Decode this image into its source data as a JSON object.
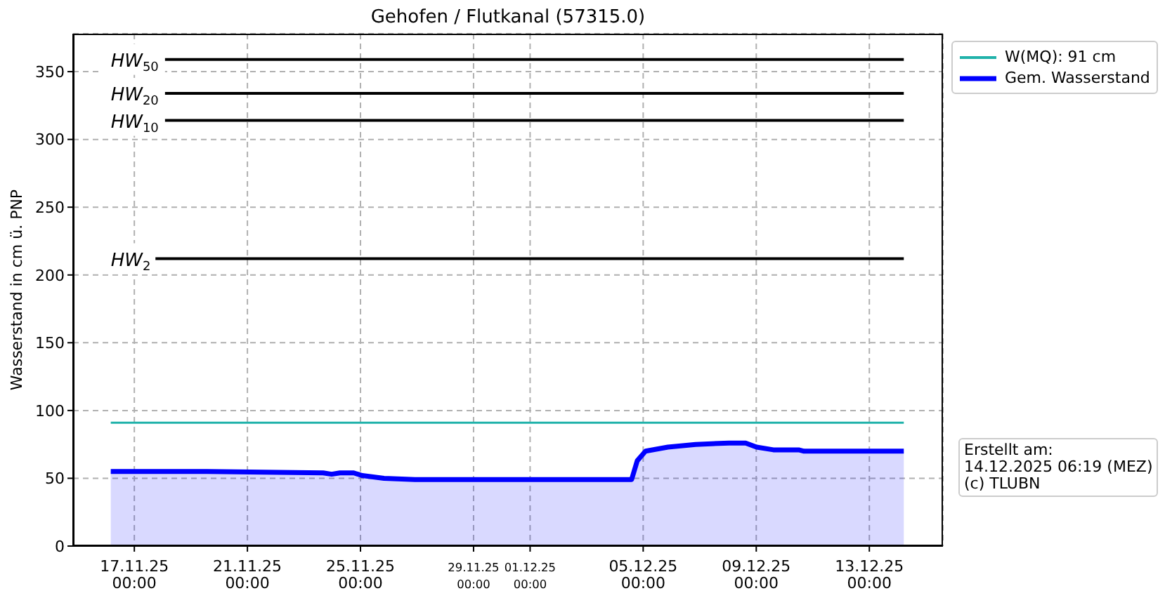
{
  "chart_data": {
    "type": "area",
    "title": "Gehofen / Flutkanal (57315.0)",
    "ylabel": "Wasserstand in cm ü. PNP",
    "xlim": [
      "2025-11-14T20:00",
      "2025-12-15T14:30"
    ],
    "xticks": [
      {
        "value": "2025-11-17",
        "label": "17.11.25\n00:00"
      },
      {
        "value": "2025-11-21",
        "label": "21.11.25\n00:00"
      },
      {
        "value": "2025-11-25",
        "label": "25.11.25\n00:00"
      },
      {
        "value": "2025-11-29",
        "label": "29.11.25\n00:00"
      },
      {
        "value": "2025-12-01",
        "label": "01.12.25\n00:00"
      },
      {
        "value": "2025-12-05",
        "label": "05.12.25\n00:00"
      },
      {
        "value": "2025-12-09",
        "label": "09.12.25\n00:00"
      },
      {
        "value": "2025-12-13",
        "label": "13.12.25\n00:00"
      }
    ],
    "ylim": [
      0,
      378
    ],
    "yticks": [
      0,
      50,
      100,
      150,
      200,
      250,
      300,
      350
    ],
    "grid": true,
    "legend": "top right",
    "marker": "none",
    "series": [
      {
        "type": "line",
        "name": "W(MQ): 91 cm",
        "color": "#20b2aa",
        "x": [
          "2025-11-16T04:00",
          "2025-12-14T05:15"
        ],
        "values": [
          91,
          91
        ]
      },
      {
        "name": "Gem. Wasserstand",
        "color": "#0000ff",
        "x": [
          "2025-11-16T04:00",
          "2025-11-19T13:30",
          "2025-11-23T16:20",
          "2025-11-23T23:30",
          "2025-11-24T06:30",
          "2025-11-24T18:15",
          "2025-11-25T01:30",
          "2025-11-25T20:00",
          "2025-11-26T22:15",
          "2025-12-04T14:10",
          "2025-12-04T19:00",
          "2025-12-05T02:00",
          "2025-12-05T21:00",
          "2025-12-06T20:30",
          "2025-12-08T00:45",
          "2025-12-08T15:00",
          "2025-12-09T00:15",
          "2025-12-09T14:30",
          "2025-12-10T12:00",
          "2025-12-10T16:30",
          "2025-12-14T05:15"
        ],
        "values": [
          55,
          55,
          54,
          53,
          54,
          54,
          52,
          50,
          49,
          49,
          63,
          70,
          73,
          75,
          76,
          76,
          73,
          71,
          71,
          70,
          70
        ]
      }
    ],
    "ref_lines": [
      {
        "axis": "y",
        "value": 359,
        "label": "HW$_{50}$",
        "color": "#000000"
      },
      {
        "axis": "y",
        "value": 334,
        "label": "HW$_{20}$",
        "color": "#000000"
      },
      {
        "axis": "y",
        "value": 314,
        "label": "HW$_{10}$",
        "color": "#000000"
      },
      {
        "axis": "y",
        "value": 212,
        "label": "HW$_{2}$",
        "color": "#000000"
      }
    ],
    "annotations": [
      "Erstellt am:\n14.12.2025 06:19 (MEZ)\n(c) TLUBN"
    ]
  }
}
